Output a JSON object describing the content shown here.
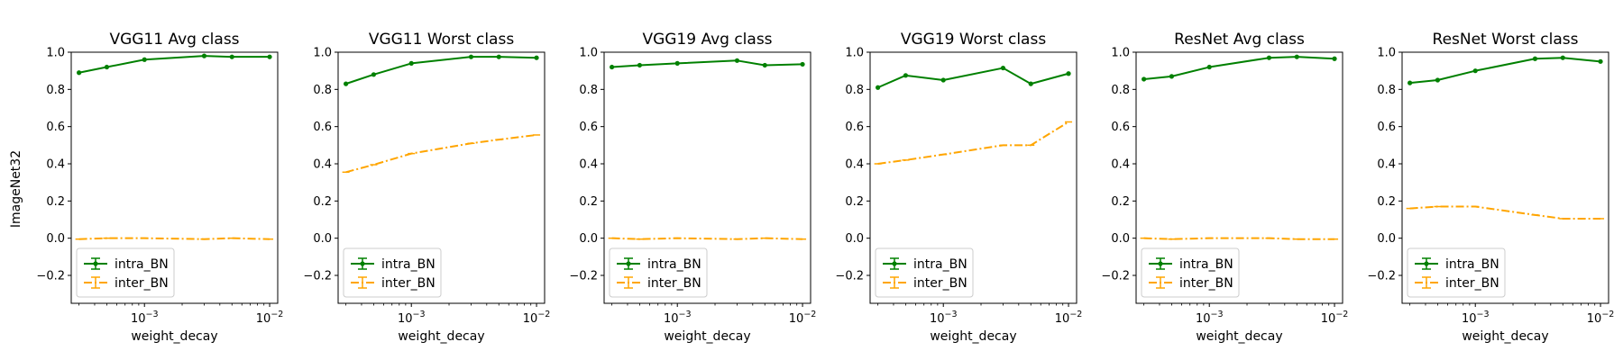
{
  "figure": {
    "ylabel": "ImageNet32"
  },
  "styles": {
    "intra_color": "#008000",
    "inter_color": "#ffa500"
  },
  "chart_data": [
    {
      "type": "line",
      "title": "VGG11 Avg class",
      "xlabel": "weight_decay",
      "xscale": "log",
      "xlim": [
        0.00026,
        0.0116
      ],
      "ylim": [
        -0.35,
        1.0
      ],
      "x": [
        0.0003,
        0.0005,
        0.001,
        0.003,
        0.005,
        0.01
      ],
      "series": [
        {
          "name": "intra_BN",
          "values": [
            0.89,
            0.92,
            0.96,
            0.98,
            0.975,
            0.975
          ]
        },
        {
          "name": "inter_BN",
          "values": [
            -0.005,
            0.0,
            0.0,
            -0.005,
            0.0,
            -0.005
          ]
        }
      ]
    },
    {
      "type": "line",
      "title": "VGG11 Worst class",
      "xlabel": "weight_decay",
      "xscale": "log",
      "xlim": [
        0.00026,
        0.0116
      ],
      "ylim": [
        -0.35,
        1.0
      ],
      "x": [
        0.0003,
        0.0005,
        0.001,
        0.003,
        0.005,
        0.01
      ],
      "series": [
        {
          "name": "intra_BN",
          "values": [
            0.83,
            0.88,
            0.94,
            0.975,
            0.975,
            0.97
          ]
        },
        {
          "name": "inter_BN",
          "values": [
            0.355,
            0.395,
            0.455,
            0.51,
            0.53,
            0.555
          ]
        }
      ]
    },
    {
      "type": "line",
      "title": "VGG19 Avg class",
      "xlabel": "weight_decay",
      "xscale": "log",
      "xlim": [
        0.00026,
        0.0116
      ],
      "ylim": [
        -0.35,
        1.0
      ],
      "x": [
        0.0003,
        0.0005,
        0.001,
        0.003,
        0.005,
        0.01
      ],
      "series": [
        {
          "name": "intra_BN",
          "values": [
            0.92,
            0.93,
            0.94,
            0.955,
            0.93,
            0.935
          ]
        },
        {
          "name": "inter_BN",
          "values": [
            0.0,
            -0.005,
            0.0,
            -0.005,
            0.0,
            -0.005
          ]
        }
      ]
    },
    {
      "type": "line",
      "title": "VGG19 Worst class",
      "xlabel": "weight_decay",
      "xscale": "log",
      "xlim": [
        0.00026,
        0.0116
      ],
      "ylim": [
        -0.35,
        1.0
      ],
      "x": [
        0.0003,
        0.0005,
        0.001,
        0.003,
        0.005,
        0.01
      ],
      "series": [
        {
          "name": "intra_BN",
          "values": [
            0.81,
            0.875,
            0.85,
            0.915,
            0.83,
            0.885
          ]
        },
        {
          "name": "inter_BN",
          "values": [
            0.4,
            0.42,
            0.45,
            0.5,
            0.5,
            0.625
          ]
        }
      ]
    },
    {
      "type": "line",
      "title": "ResNet Avg class",
      "xlabel": "weight_decay",
      "xscale": "log",
      "xlim": [
        0.00026,
        0.0116
      ],
      "ylim": [
        -0.35,
        1.0
      ],
      "x": [
        0.0003,
        0.0005,
        0.001,
        0.003,
        0.005,
        0.01
      ],
      "series": [
        {
          "name": "intra_BN",
          "values": [
            0.855,
            0.87,
            0.92,
            0.97,
            0.975,
            0.965
          ]
        },
        {
          "name": "inter_BN",
          "values": [
            0.0,
            -0.005,
            0.0,
            0.0,
            -0.005,
            -0.005
          ]
        }
      ]
    },
    {
      "type": "line",
      "title": "ResNet Worst class",
      "xlabel": "weight_decay",
      "xscale": "log",
      "xlim": [
        0.00026,
        0.0116
      ],
      "ylim": [
        -0.35,
        1.0
      ],
      "x": [
        0.0003,
        0.0005,
        0.001,
        0.003,
        0.005,
        0.01
      ],
      "series": [
        {
          "name": "intra_BN",
          "values": [
            0.835,
            0.85,
            0.9,
            0.965,
            0.97,
            0.95
          ]
        },
        {
          "name": "inter_BN",
          "values": [
            0.16,
            0.17,
            0.17,
            0.125,
            0.105,
            0.105
          ]
        }
      ]
    }
  ]
}
